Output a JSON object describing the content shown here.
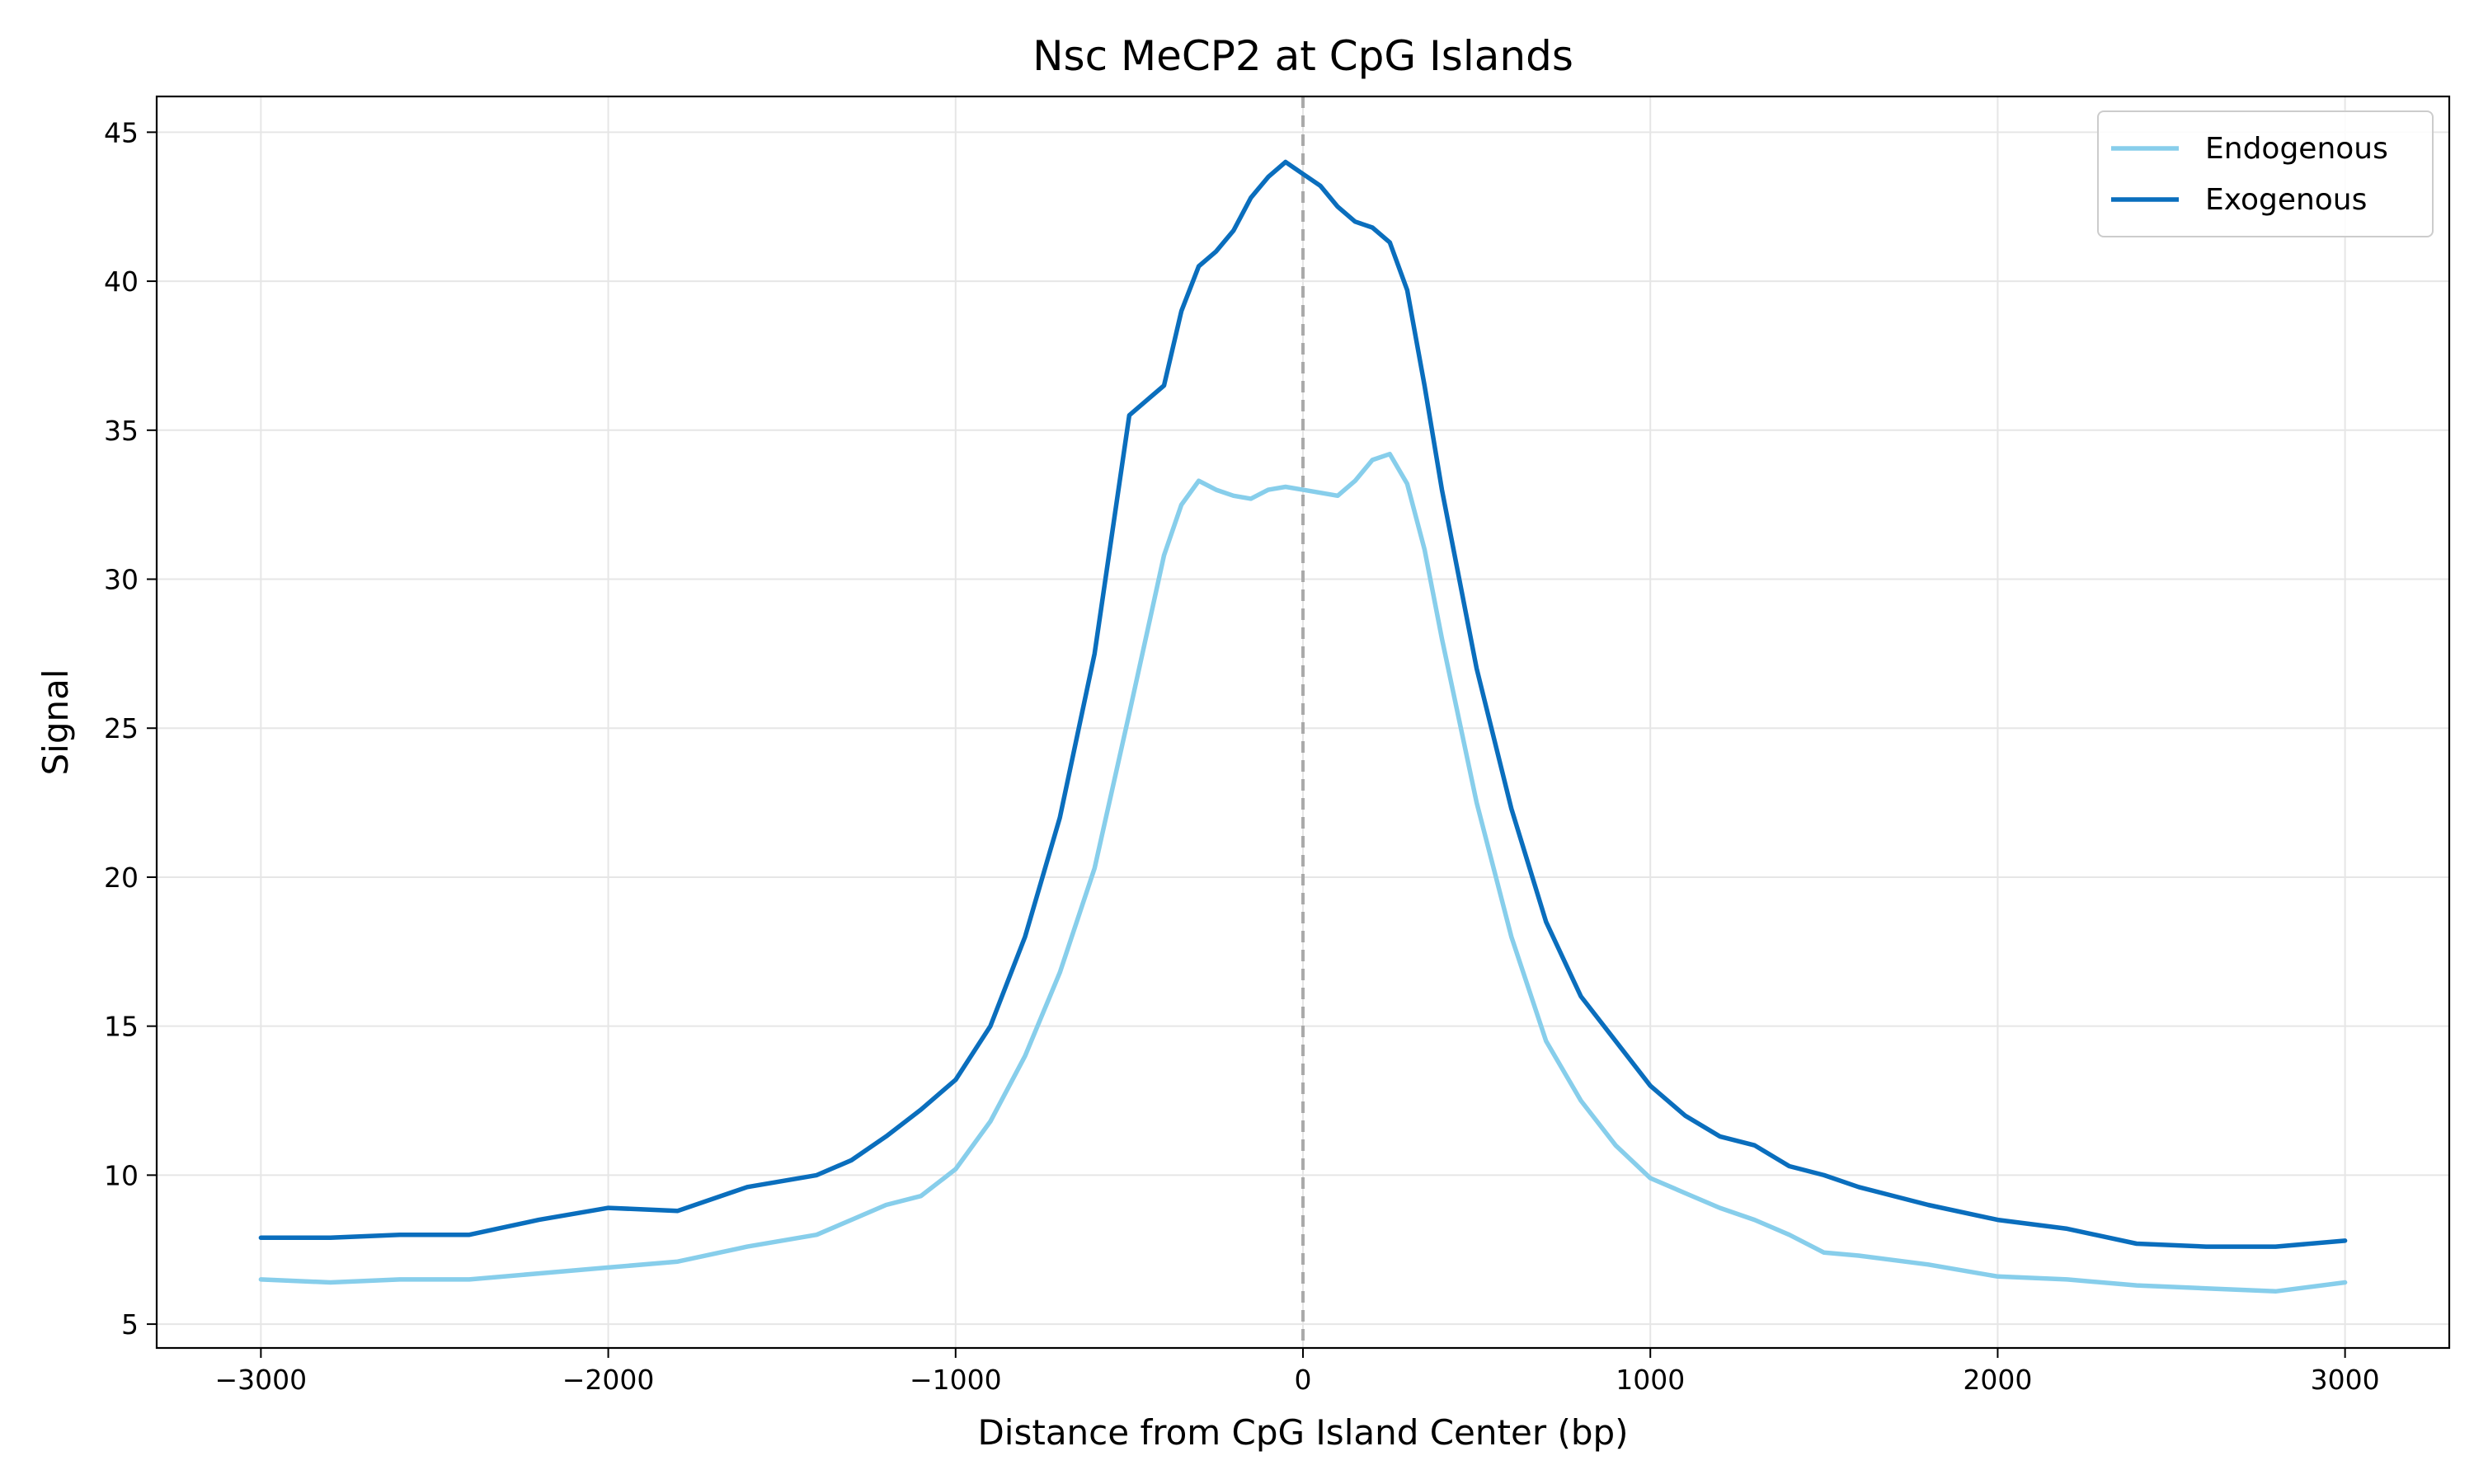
{
  "chart_data": {
    "type": "line",
    "title": "Nsc MeCP2 at CpG Islands",
    "xlabel": "Distance from CpG Island Center (bp)",
    "ylabel": "Signal",
    "xlim": [
      -3300,
      3300
    ],
    "ylim": [
      4.2,
      46.2
    ],
    "xticks": [
      -3000,
      -2000,
      -1000,
      0,
      1000,
      2000,
      3000
    ],
    "xtick_labels": [
      "−3000",
      "−2000",
      "−1000",
      "0",
      "1000",
      "2000",
      "3000"
    ],
    "yticks": [
      5,
      10,
      15,
      20,
      25,
      30,
      35,
      40,
      45
    ],
    "ytick_labels": [
      "5",
      "10",
      "15",
      "20",
      "25",
      "30",
      "35",
      "40",
      "45"
    ],
    "grid": true,
    "legend_position": "top-right",
    "reference_line": {
      "x": 0,
      "style": "dashed",
      "color": "#aaaaaa"
    },
    "x": [
      -3000,
      -2800,
      -2600,
      -2400,
      -2200,
      -2000,
      -1800,
      -1600,
      -1400,
      -1300,
      -1200,
      -1100,
      -1000,
      -900,
      -800,
      -700,
      -600,
      -500,
      -400,
      -350,
      -300,
      -250,
      -200,
      -150,
      -100,
      -50,
      0,
      50,
      100,
      150,
      200,
      250,
      300,
      350,
      400,
      500,
      600,
      700,
      800,
      900,
      1000,
      1100,
      1200,
      1300,
      1400,
      1500,
      1600,
      1800,
      2000,
      2200,
      2400,
      2600,
      2800,
      3000
    ],
    "series": [
      {
        "name": "Endogenous",
        "color": "#87ceeb",
        "values": [
          6.5,
          6.4,
          6.5,
          6.5,
          6.7,
          6.9,
          7.1,
          7.6,
          8.0,
          8.5,
          9.0,
          9.3,
          10.2,
          11.8,
          14.0,
          16.8,
          20.3,
          25.5,
          30.8,
          32.5,
          33.3,
          33.0,
          32.8,
          32.7,
          33.0,
          33.1,
          33.0,
          32.9,
          32.8,
          33.3,
          34.0,
          34.2,
          33.2,
          31.0,
          28.0,
          22.5,
          18.0,
          14.5,
          12.5,
          11.0,
          9.9,
          9.4,
          8.9,
          8.5,
          8.0,
          7.4,
          7.3,
          7.0,
          6.6,
          6.5,
          6.3,
          6.2,
          6.1,
          6.4
        ]
      },
      {
        "name": "Exogenous",
        "color": "#0a6ebd",
        "values": [
          7.9,
          7.9,
          8.0,
          8.0,
          8.5,
          8.9,
          8.8,
          9.6,
          10.0,
          10.5,
          11.3,
          12.2,
          13.2,
          15.0,
          18.0,
          22.0,
          27.5,
          35.5,
          36.5,
          39.0,
          40.5,
          41.0,
          41.7,
          42.8,
          43.5,
          44.0,
          43.6,
          43.2,
          42.5,
          42.0,
          41.8,
          41.3,
          39.7,
          36.5,
          33.0,
          27.0,
          22.3,
          18.5,
          16.0,
          14.5,
          13.0,
          12.0,
          11.3,
          11.0,
          10.3,
          10.0,
          9.6,
          9.0,
          8.5,
          8.2,
          7.7,
          7.6,
          7.6,
          7.8
        ]
      }
    ]
  }
}
